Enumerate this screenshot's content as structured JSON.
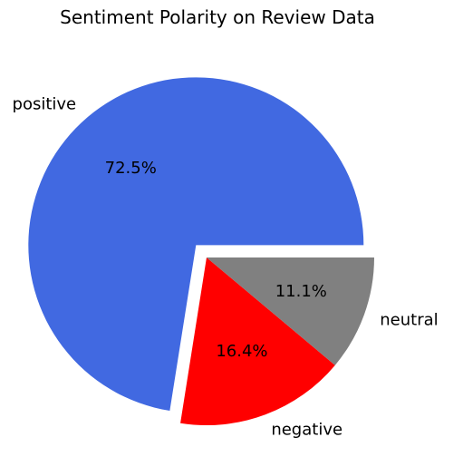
{
  "chart_data": {
    "type": "pie",
    "title": "Sentiment Polarity on Review Data",
    "slices": [
      {
        "label": "positive",
        "value": 72.5,
        "pct_label": "72.5%",
        "color": "#4169E1",
        "exploded": true
      },
      {
        "label": "negative",
        "value": 16.4,
        "pct_label": "16.4%",
        "color": "#FF0000",
        "exploded": false
      },
      {
        "label": "neutral",
        "value": 11.1,
        "pct_label": "11.1%",
        "color": "#808080",
        "exploded": false
      }
    ],
    "start_angle_deg": 0,
    "direction": "counterclockwise",
    "legend": "none"
  }
}
